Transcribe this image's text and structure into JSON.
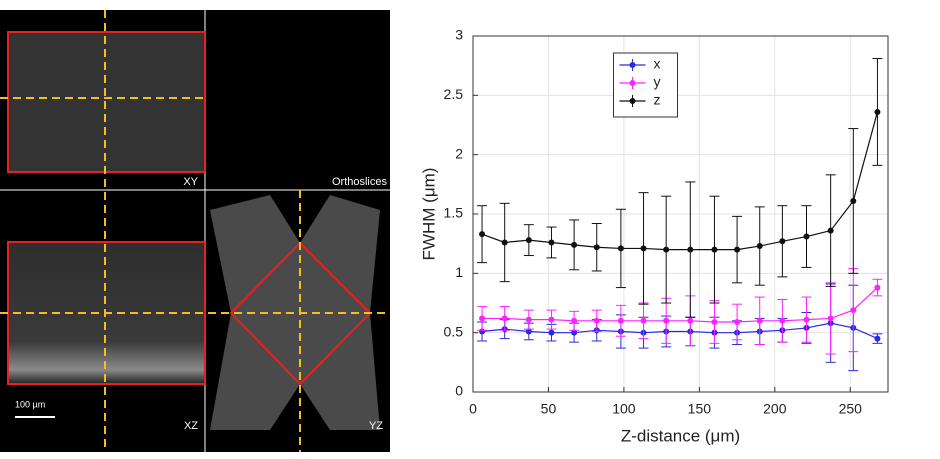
{
  "image_panel": {
    "labels": {
      "xy": "XY",
      "orthoslices": "Orthoslices",
      "xz": "XZ",
      "yz": "YZ",
      "scale_bar": "100 µm"
    }
  },
  "chart_data": {
    "type": "line",
    "xlabel": "Z-distance (μm)",
    "ylabel": "FWHM (μm)",
    "x": [
      6,
      21,
      37,
      52,
      67,
      82,
      98,
      113,
      128,
      144,
      160,
      175,
      190,
      205,
      221,
      237,
      252,
      268
    ],
    "series": [
      {
        "name": "x",
        "color": "#2a2ae0",
        "values": [
          0.51,
          0.53,
          0.51,
          0.5,
          0.5,
          0.52,
          0.51,
          0.5,
          0.51,
          0.51,
          0.5,
          0.5,
          0.51,
          0.52,
          0.54,
          0.58,
          0.54,
          0.45
        ],
        "errors": [
          0.08,
          0.08,
          0.07,
          0.07,
          0.08,
          0.09,
          0.14,
          0.13,
          0.13,
          0.12,
          0.13,
          0.1,
          0.11,
          0.1,
          0.13,
          0.33,
          0.36,
          0.04
        ]
      },
      {
        "name": "y",
        "color": "#ff22ff",
        "values": [
          0.62,
          0.62,
          0.61,
          0.61,
          0.6,
          0.6,
          0.6,
          0.6,
          0.6,
          0.6,
          0.59,
          0.59,
          0.6,
          0.6,
          0.61,
          0.62,
          0.69,
          0.88
        ],
        "errors": [
          0.1,
          0.1,
          0.08,
          0.08,
          0.08,
          0.09,
          0.13,
          0.15,
          0.19,
          0.21,
          0.18,
          0.15,
          0.2,
          0.18,
          0.19,
          0.3,
          0.35,
          0.07
        ]
      },
      {
        "name": "z",
        "color": "#111111",
        "values": [
          1.33,
          1.26,
          1.28,
          1.26,
          1.24,
          1.22,
          1.21,
          1.21,
          1.2,
          1.2,
          1.2,
          1.2,
          1.23,
          1.27,
          1.31,
          1.36,
          1.61,
          2.36
        ],
        "errors": [
          0.24,
          0.33,
          0.13,
          0.13,
          0.21,
          0.2,
          0.33,
          0.47,
          0.45,
          0.57,
          0.45,
          0.28,
          0.33,
          0.3,
          0.26,
          0.47,
          0.61,
          0.45
        ]
      }
    ],
    "xlim": [
      0,
      275
    ],
    "xticks": [
      0,
      50,
      100,
      150,
      200,
      250
    ],
    "ylim": [
      0,
      3
    ],
    "yticks": [
      0,
      0.5,
      1,
      1.5,
      2,
      2.5,
      3
    ],
    "grid": true,
    "legend": "upper center"
  }
}
